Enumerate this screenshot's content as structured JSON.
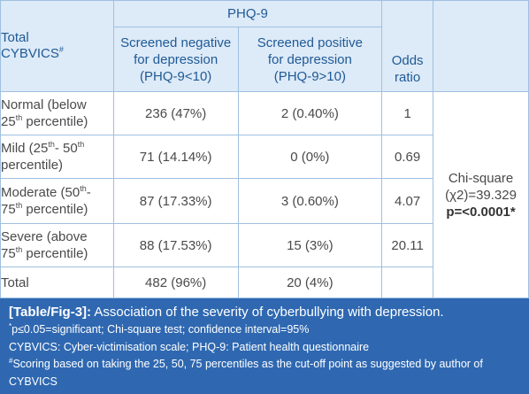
{
  "table": {
    "group_header": "PHQ-9",
    "col_total": [
      "Total",
      "CYBVICS"
    ],
    "col_total_sup": "#",
    "col_negative": [
      "Screened negative",
      "for depression",
      "(PHQ-9<10)"
    ],
    "col_positive": [
      "Screened positive",
      "for depression",
      "(PHQ-9>10)"
    ],
    "col_odds": [
      "Odds",
      "ratio"
    ],
    "rows": [
      {
        "label_a": "Normal (below",
        "label_b_pre": "25",
        "label_b_sup": "th",
        "label_b_post": " percentile)",
        "label_a_sup": "",
        "label_a_post": "",
        "negative": "236 (47%)",
        "positive": "2 (0.40%)",
        "odds": "1"
      },
      {
        "label_a": "Mild (25",
        "label_a_sup": "th",
        "label_a_mid": "- 50",
        "label_a_sup2": "th",
        "label_b_pre": "percentile)",
        "negative": "71 (14.14%)",
        "positive": "0 (0%)",
        "odds": "0.69"
      },
      {
        "label_a": "Moderate (50",
        "label_a_sup": "th",
        "label_a_mid": "-",
        "label_b_pre": "75",
        "label_b_sup": "th",
        "label_b_post": " percentile)",
        "negative": "87 (17.33%)",
        "positive": "3 (0.60%)",
        "odds": "4.07"
      },
      {
        "label_a": "Severe (above",
        "label_b_pre": "75",
        "label_b_sup": "th",
        "label_b_post": " percentile)",
        "negative": "88 (17.53%)",
        "positive": "15 (3%)",
        "odds": "20.11"
      }
    ],
    "total_row": {
      "label": "Total",
      "negative": "482 (96%)",
      "positive": "20 (4%)",
      "odds": ""
    },
    "chi_square": {
      "line1": "Chi-square",
      "line2": "(χ2)=39.329",
      "line3": "p=<0.0001*"
    }
  },
  "caption": {
    "label": "[Table/Fig-3]:",
    "title": " Association of the severity of cyberbullying with depression.",
    "note1_sup": "*",
    "note1": "p≤0.05=significant; Chi-square test; confidence interval=95%",
    "note2": "CYBVICS: Cyber-victimisation scale; PHQ-9: Patient health questionnaire",
    "note3_sup": "#",
    "note3": "Scoring based on taking the 25, 50, 75 percentiles as the cut-off point as suggested by author of",
    "note4": "CYBVICS"
  },
  "colors": {
    "header_bg": "#ddeaf7",
    "header_text": "#1f5a96",
    "border": "#9fc0e0",
    "caption_bg": "#2f68b1"
  }
}
